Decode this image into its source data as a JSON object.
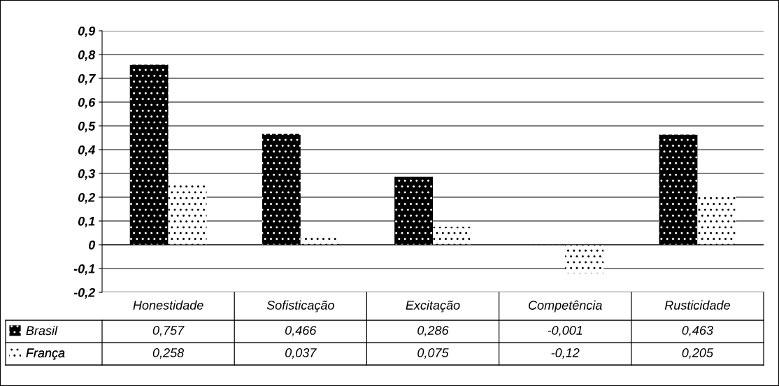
{
  "chart_data": {
    "type": "bar",
    "categories": [
      "Honestidade",
      "Sofisticação",
      "Excitação",
      "Competência",
      "Rusticidade"
    ],
    "series": [
      {
        "name": "Brasil",
        "color": "#000000",
        "values": [
          0.757,
          0.466,
          0.286,
          -0.001,
          0.463
        ],
        "value_labels": [
          "0,757",
          "0,466",
          "0,286",
          "-0,001",
          "0,463"
        ]
      },
      {
        "name": "França",
        "color": "#ffffff",
        "values": [
          0.258,
          0.037,
          0.075,
          -0.12,
          0.205
        ],
        "value_labels": [
          "0,258",
          "0,037",
          "0,075",
          "-0,12",
          "0,205"
        ]
      }
    ],
    "ylim": [
      -0.2,
      0.9
    ],
    "yticks": [
      {
        "value": -0.2,
        "label": "-0,2"
      },
      {
        "value": -0.1,
        "label": "-0,1"
      },
      0,
      {
        "value": 0.1,
        "label": "0,1"
      },
      {
        "value": 0.2,
        "label": "0,2"
      },
      {
        "value": 0.3,
        "label": "0,3"
      },
      {
        "value": 0.4,
        "label": "0,4"
      },
      {
        "value": 0.5,
        "label": "0,5"
      },
      {
        "value": 0.6,
        "label": "0,6"
      },
      {
        "value": 0.7,
        "label": "0,7"
      },
      {
        "value": 0.8,
        "label": "0,8"
      },
      {
        "value": 0.9,
        "label": "0,9"
      }
    ],
    "grid": "y",
    "legend": "bottom"
  }
}
